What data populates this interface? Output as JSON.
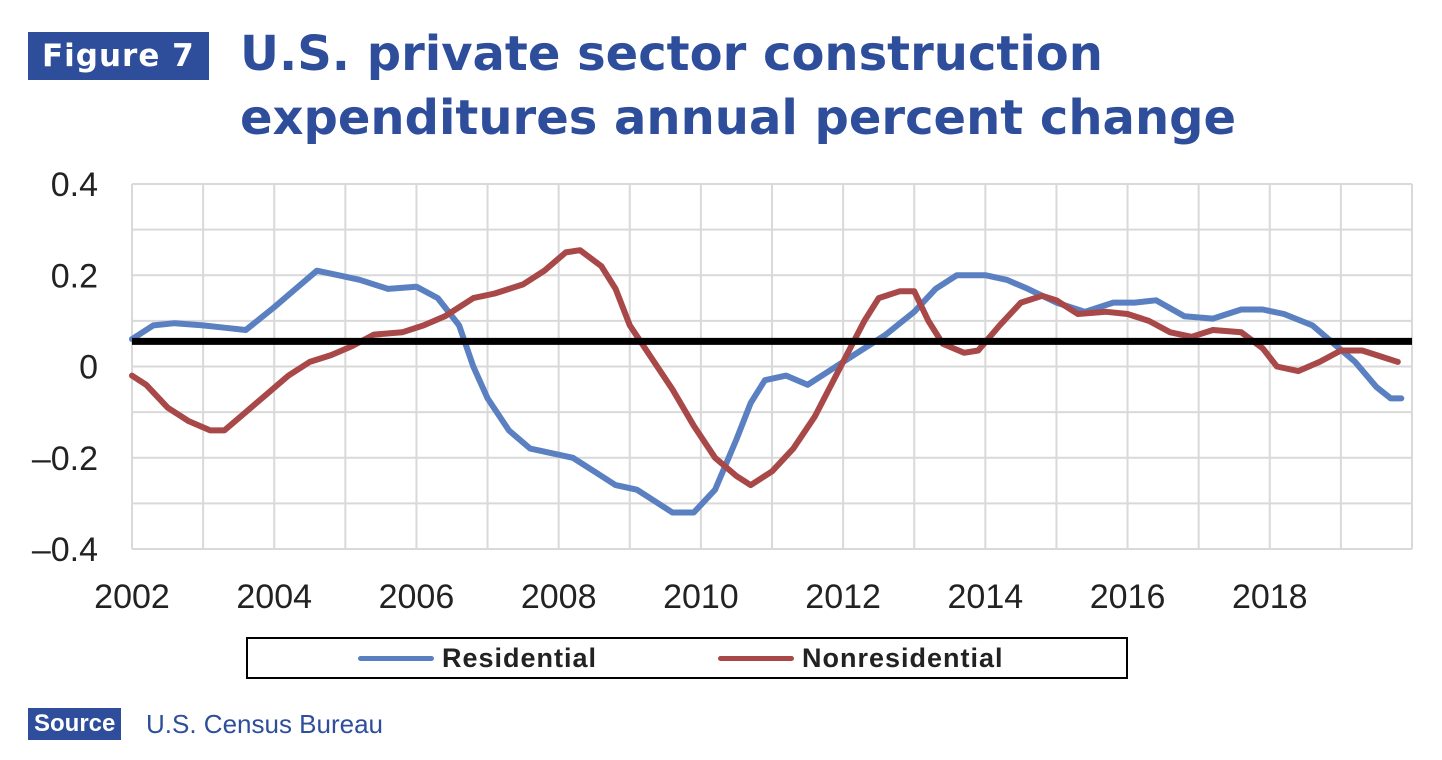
{
  "header": {
    "badge": "Figure 7",
    "title": "U.S. private sector construction expenditures annual percent change"
  },
  "source": {
    "label": "Source",
    "text": "U.S. Census Bureau"
  },
  "colors": {
    "brand": "#2e4e9c",
    "residential": "#5b80c2",
    "nonresidential": "#a84848",
    "reference_line": "#000000",
    "grid": "#d9d9d9"
  },
  "chart_data": {
    "type": "line",
    "title": "U.S. private sector construction expenditures annual percent change",
    "xlabel": "",
    "ylabel": "",
    "xlim": [
      2002,
      2020
    ],
    "ylim": [
      -0.4,
      0.4
    ],
    "x_ticks": [
      "2002",
      "2004",
      "2006",
      "2008",
      "2010",
      "2012",
      "2014",
      "2016",
      "2018"
    ],
    "y_ticks": [
      "0.4",
      "0.2",
      "0",
      "–0.2",
      "–0.4"
    ],
    "grid": true,
    "legend_position": "bottom",
    "reference_line": 0.055,
    "series": [
      {
        "name": "Residential",
        "color": "#5b80c2",
        "points": [
          [
            2002.0,
            0.06
          ],
          [
            2002.3,
            0.09
          ],
          [
            2002.6,
            0.095
          ],
          [
            2003.0,
            0.09
          ],
          [
            2003.3,
            0.085
          ],
          [
            2003.6,
            0.08
          ],
          [
            2004.0,
            0.13
          ],
          [
            2004.3,
            0.17
          ],
          [
            2004.6,
            0.21
          ],
          [
            2004.9,
            0.2
          ],
          [
            2005.2,
            0.19
          ],
          [
            2005.6,
            0.17
          ],
          [
            2006.0,
            0.175
          ],
          [
            2006.3,
            0.15
          ],
          [
            2006.6,
            0.09
          ],
          [
            2006.8,
            0.0
          ],
          [
            2007.0,
            -0.07
          ],
          [
            2007.3,
            -0.14
          ],
          [
            2007.6,
            -0.18
          ],
          [
            2007.9,
            -0.19
          ],
          [
            2008.2,
            -0.2
          ],
          [
            2008.5,
            -0.23
          ],
          [
            2008.8,
            -0.26
          ],
          [
            2009.1,
            -0.27
          ],
          [
            2009.4,
            -0.3
          ],
          [
            2009.6,
            -0.32
          ],
          [
            2009.9,
            -0.32
          ],
          [
            2010.2,
            -0.27
          ],
          [
            2010.5,
            -0.16
          ],
          [
            2010.7,
            -0.08
          ],
          [
            2010.9,
            -0.03
          ],
          [
            2011.2,
            -0.02
          ],
          [
            2011.5,
            -0.04
          ],
          [
            2011.8,
            -0.01
          ],
          [
            2012.2,
            0.03
          ],
          [
            2012.6,
            0.07
          ],
          [
            2013.0,
            0.12
          ],
          [
            2013.3,
            0.17
          ],
          [
            2013.6,
            0.2
          ],
          [
            2014.0,
            0.2
          ],
          [
            2014.3,
            0.19
          ],
          [
            2014.6,
            0.17
          ],
          [
            2015.0,
            0.14
          ],
          [
            2015.4,
            0.12
          ],
          [
            2015.8,
            0.14
          ],
          [
            2016.1,
            0.14
          ],
          [
            2016.4,
            0.145
          ],
          [
            2016.8,
            0.11
          ],
          [
            2017.2,
            0.105
          ],
          [
            2017.6,
            0.125
          ],
          [
            2017.9,
            0.125
          ],
          [
            2018.2,
            0.115
          ],
          [
            2018.6,
            0.09
          ],
          [
            2018.9,
            0.05
          ],
          [
            2019.2,
            0.01
          ],
          [
            2019.5,
            -0.045
          ],
          [
            2019.7,
            -0.07
          ],
          [
            2019.85,
            -0.07
          ]
        ]
      },
      {
        "name": "Nonresidential",
        "color": "#a84848",
        "points": [
          [
            2002.0,
            -0.02
          ],
          [
            2002.2,
            -0.04
          ],
          [
            2002.5,
            -0.09
          ],
          [
            2002.8,
            -0.12
          ],
          [
            2003.1,
            -0.14
          ],
          [
            2003.3,
            -0.14
          ],
          [
            2003.6,
            -0.1
          ],
          [
            2003.9,
            -0.06
          ],
          [
            2004.2,
            -0.02
          ],
          [
            2004.5,
            0.01
          ],
          [
            2004.8,
            0.025
          ],
          [
            2005.1,
            0.045
          ],
          [
            2005.4,
            0.07
          ],
          [
            2005.8,
            0.075
          ],
          [
            2006.1,
            0.09
          ],
          [
            2006.4,
            0.11
          ],
          [
            2006.8,
            0.15
          ],
          [
            2007.1,
            0.16
          ],
          [
            2007.5,
            0.18
          ],
          [
            2007.8,
            0.21
          ],
          [
            2008.1,
            0.25
          ],
          [
            2008.3,
            0.255
          ],
          [
            2008.6,
            0.22
          ],
          [
            2008.8,
            0.17
          ],
          [
            2009.0,
            0.09
          ],
          [
            2009.3,
            0.02
          ],
          [
            2009.6,
            -0.05
          ],
          [
            2009.9,
            -0.13
          ],
          [
            2010.2,
            -0.2
          ],
          [
            2010.5,
            -0.24
          ],
          [
            2010.7,
            -0.26
          ],
          [
            2011.0,
            -0.23
          ],
          [
            2011.3,
            -0.18
          ],
          [
            2011.6,
            -0.11
          ],
          [
            2011.8,
            -0.05
          ],
          [
            2012.0,
            0.01
          ],
          [
            2012.3,
            0.1
          ],
          [
            2012.5,
            0.15
          ],
          [
            2012.8,
            0.165
          ],
          [
            2013.0,
            0.165
          ],
          [
            2013.2,
            0.1
          ],
          [
            2013.4,
            0.05
          ],
          [
            2013.7,
            0.03
          ],
          [
            2013.9,
            0.035
          ],
          [
            2014.2,
            0.09
          ],
          [
            2014.5,
            0.14
          ],
          [
            2014.8,
            0.155
          ],
          [
            2015.0,
            0.145
          ],
          [
            2015.3,
            0.115
          ],
          [
            2015.7,
            0.12
          ],
          [
            2016.0,
            0.115
          ],
          [
            2016.3,
            0.1
          ],
          [
            2016.6,
            0.075
          ],
          [
            2016.9,
            0.065
          ],
          [
            2017.2,
            0.08
          ],
          [
            2017.6,
            0.075
          ],
          [
            2017.9,
            0.04
          ],
          [
            2018.1,
            0.0
          ],
          [
            2018.4,
            -0.01
          ],
          [
            2018.7,
            0.01
          ],
          [
            2019.0,
            0.035
          ],
          [
            2019.3,
            0.035
          ],
          [
            2019.6,
            0.02
          ],
          [
            2019.8,
            0.01
          ]
        ]
      }
    ]
  }
}
